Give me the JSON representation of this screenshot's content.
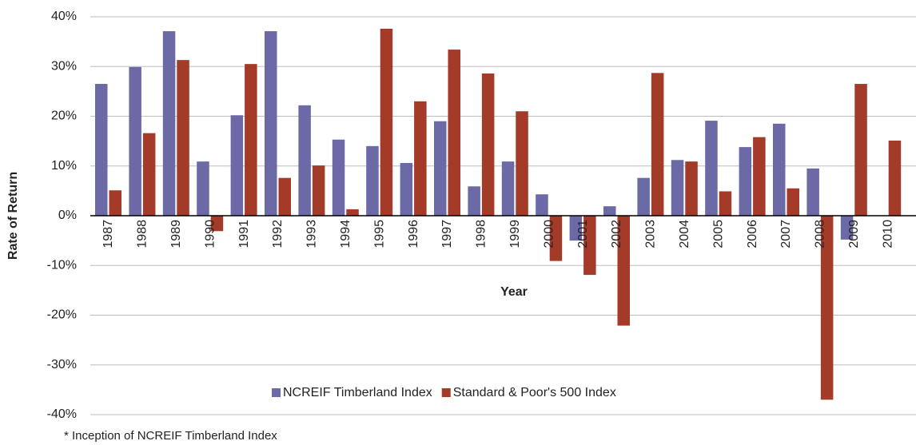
{
  "chart_data": {
    "type": "bar",
    "xlabel": "Year",
    "ylabel": "Rate of Return",
    "footnote": "* Inception of NCREIF Timberland Index",
    "categories": [
      "1987",
      "1988",
      "1989",
      "1990",
      "1991",
      "1992",
      "1993",
      "1994",
      "1995",
      "1996",
      "1997",
      "1998",
      "1999",
      "2000",
      "2001",
      "2002",
      "2003",
      "2004",
      "2005",
      "2006",
      "2007",
      "2008",
      "2009",
      "2010"
    ],
    "series": [
      {
        "name": "NCREIF Timberland Index",
        "color": "#6b6aa6",
        "values": [
          26.5,
          29.9,
          37.1,
          10.9,
          20.2,
          37.1,
          22.2,
          15.3,
          14.0,
          10.6,
          19.0,
          5.9,
          10.9,
          4.3,
          -5.0,
          1.9,
          7.6,
          11.2,
          19.1,
          13.8,
          18.5,
          9.5,
          -4.8,
          null
        ]
      },
      {
        "name": "Standard & Poor's 500 Index",
        "color": "#a43a28",
        "values": [
          5.1,
          16.6,
          31.3,
          -3.1,
          30.5,
          7.6,
          10.1,
          1.3,
          37.6,
          23.0,
          33.4,
          28.6,
          21.0,
          -9.1,
          -11.9,
          -22.1,
          28.7,
          10.9,
          4.9,
          15.8,
          5.5,
          -37.0,
          26.5,
          15.1
        ]
      }
    ],
    "ylim": [
      -40,
      40
    ],
    "yticks": [
      {
        "value": -40,
        "label": "-40%"
      },
      {
        "value": -30,
        "label": "-30%"
      },
      {
        "value": -20,
        "label": "-20%"
      },
      {
        "value": -10,
        "label": "-10%"
      },
      {
        "value": 0,
        "label": "0%"
      },
      {
        "value": 10,
        "label": "10%"
      },
      {
        "value": 20,
        "label": "20%"
      },
      {
        "value": 30,
        "label": "30%"
      },
      {
        "value": 40,
        "label": "40%"
      }
    ],
    "grid": true,
    "legend": "bottom"
  }
}
